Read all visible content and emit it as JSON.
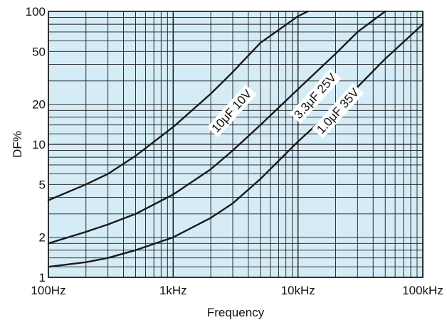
{
  "chart_data": {
    "type": "line",
    "title": "",
    "xlabel": "Frequency",
    "ylabel": "DF%",
    "x_scale": "log",
    "y_scale": "log",
    "xlim": [
      100,
      100000
    ],
    "ylim": [
      1,
      100
    ],
    "grid": true,
    "background_color": "#d5ecf7",
    "line_color": "#1a1a1a",
    "x_ticks": [
      {
        "value": 100,
        "label": "100Hz"
      },
      {
        "value": 1000,
        "label": "1kHz"
      },
      {
        "value": 10000,
        "label": "10kHz"
      },
      {
        "value": 100000,
        "label": "100kHz"
      }
    ],
    "y_ticks": [
      {
        "value": 1,
        "label": "1"
      },
      {
        "value": 2,
        "label": "2"
      },
      {
        "value": 5,
        "label": "5"
      },
      {
        "value": 10,
        "label": "10"
      },
      {
        "value": 20,
        "label": "20"
      },
      {
        "value": 50,
        "label": "50"
      },
      {
        "value": 100,
        "label": "100"
      }
    ],
    "series": [
      {
        "name": "10μF 10V",
        "label_at": {
          "x": 3100,
          "y": 17
        },
        "x": [
          100,
          200,
          300,
          500,
          1000,
          2000,
          3000,
          5000,
          10000,
          12000
        ],
        "y": [
          3.8,
          5.0,
          6.0,
          8.2,
          13.5,
          24,
          35,
          58,
          92,
          100
        ]
      },
      {
        "name": "3.3μF 25V",
        "label_at": {
          "x": 14500,
          "y": 22
        },
        "x": [
          100,
          200,
          300,
          500,
          1000,
          2000,
          3000,
          5000,
          10000,
          20000,
          30000,
          50000
        ],
        "y": [
          1.8,
          2.2,
          2.5,
          3.0,
          4.2,
          6.5,
          9.0,
          14,
          26,
          48,
          70,
          100
        ]
      },
      {
        "name": "1.0μF 35V",
        "label_at": {
          "x": 22000,
          "y": 17
        },
        "x": [
          100,
          200,
          300,
          500,
          1000,
          2000,
          3000,
          5000,
          10000,
          20000,
          30000,
          50000,
          100000
        ],
        "y": [
          1.2,
          1.3,
          1.4,
          1.6,
          2.0,
          2.8,
          3.6,
          5.5,
          10.5,
          19,
          27,
          44,
          80
        ]
      }
    ]
  }
}
